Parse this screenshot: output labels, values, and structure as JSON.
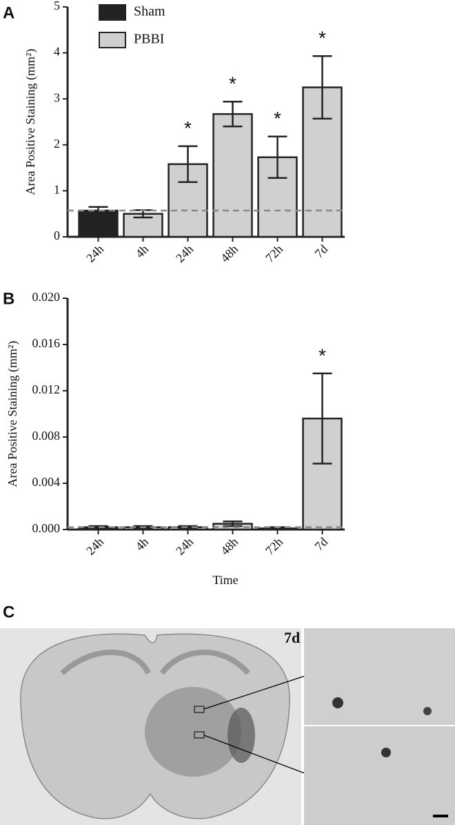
{
  "chart_data": [
    {
      "type": "bar",
      "panel_label": "A",
      "y_label": "Area Positive Staining (mm²)",
      "categories": [
        "24h",
        "4h",
        "24h",
        "48h",
        "72h",
        "7d"
      ],
      "series": [
        {
          "name": "Sham",
          "color": "#222222",
          "values": [
            0.57,
            null,
            null,
            null,
            null,
            null
          ],
          "errors": [
            0.08,
            null,
            null,
            null,
            null,
            null
          ],
          "significance": [
            null,
            null,
            null,
            null,
            null,
            null
          ]
        },
        {
          "name": "PBBI",
          "color": "#d0d0d0",
          "values": [
            null,
            0.5,
            1.58,
            2.67,
            1.73,
            3.25
          ],
          "errors": [
            null,
            0.08,
            0.39,
            0.27,
            0.45,
            0.68
          ],
          "significance": [
            null,
            null,
            "*",
            "*",
            "*",
            "*"
          ]
        }
      ],
      "reference_line": 0.57,
      "ylim": [
        0,
        5
      ],
      "yticks": [
        0,
        1,
        2,
        3,
        4,
        5
      ],
      "legend": "top-left"
    },
    {
      "type": "bar",
      "panel_label": "B",
      "y_label": "Area Positive Staining (mm²)",
      "x_label": "Time",
      "categories": [
        "24h",
        "4h",
        "24h",
        "48h",
        "72h",
        "7d"
      ],
      "values": [
        0.0002,
        0.0002,
        0.0002,
        0.0005,
        0.0001,
        0.0096
      ],
      "errors": [
        0.0001,
        0.0001,
        0.0001,
        0.0002,
        0.0001,
        0.0039
      ],
      "colors": [
        "#222222",
        "#d0d0d0",
        "#d0d0d0",
        "#d0d0d0",
        "#d0d0d0",
        "#d0d0d0"
      ],
      "significance": [
        null,
        null,
        null,
        null,
        null,
        "*"
      ],
      "reference_line": 0.0002,
      "ylim": [
        0,
        0.02
      ],
      "yticks": [
        {
          "value": 0,
          "label": "0.000"
        },
        {
          "value": 0.004,
          "label": "0.004"
        },
        {
          "value": 0.008,
          "label": "0.008"
        },
        {
          "value": 0.012,
          "label": "0.012"
        },
        {
          "value": 0.016,
          "label": "0.016"
        },
        {
          "value": 0.02,
          "label": "0.020"
        }
      ]
    }
  ],
  "panel_c": {
    "panel_label": "C",
    "annotation": "7d"
  }
}
